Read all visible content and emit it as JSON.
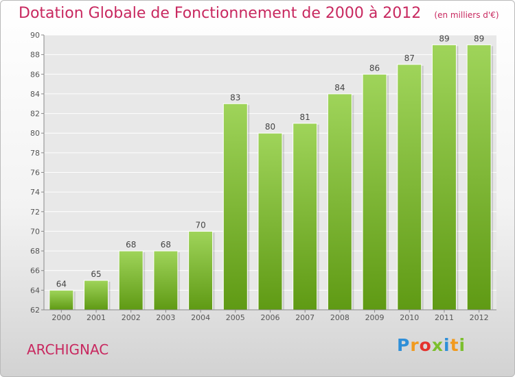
{
  "header": {
    "title": "Dotation Globale de Fonctionnement de 2000 à 2012",
    "subtitle": "(en milliers d'€)"
  },
  "footer": {
    "commune": "ARCHIGNAC",
    "logo": [
      "P",
      "r",
      "o",
      "x",
      "i",
      "t",
      "i"
    ],
    "logo_colors": [
      "#2f8fd8",
      "#f19a1e",
      "#e5322d",
      "#7cbf2d",
      "#2f8fd8",
      "#f19a1e",
      "#7cbf2d"
    ]
  },
  "colors": {
    "accent": "#c8285f",
    "bar_light": "#9fd45a",
    "bar_dark": "#5f9a14",
    "grid": "#ffffff",
    "axis_text": "#555555"
  },
  "chart_data": {
    "type": "bar",
    "title": "Dotation Globale de Fonctionnement de 2000 à 2012",
    "subtitle": "(en milliers d'€)",
    "xlabel": "",
    "ylabel": "",
    "categories": [
      "2000",
      "2001",
      "2002",
      "2003",
      "2004",
      "2005",
      "2006",
      "2007",
      "2008",
      "2009",
      "2010",
      "2011",
      "2012"
    ],
    "values": [
      64,
      65,
      68,
      68,
      70,
      83,
      80,
      81,
      84,
      86,
      87,
      89,
      89
    ],
    "ylim": [
      62,
      90
    ],
    "yticks": [
      62,
      64,
      66,
      68,
      70,
      72,
      74,
      76,
      78,
      80,
      82,
      84,
      86,
      88,
      90
    ],
    "grid": true,
    "legend": "none"
  }
}
